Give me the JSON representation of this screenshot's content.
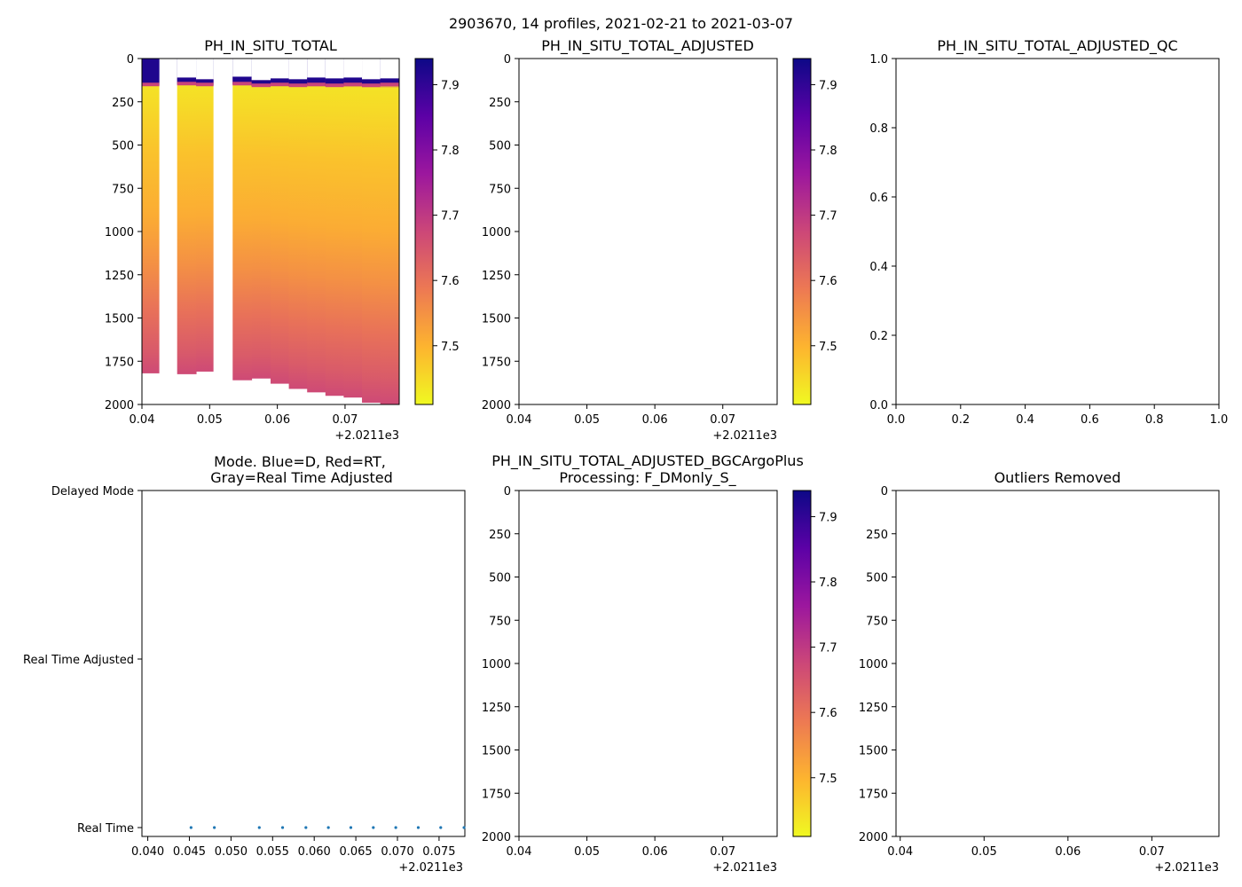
{
  "figure": {
    "suptitle": "2903670, 14 profiles, 2021-02-21 to 2021-03-07",
    "x_offset_label": "+2.0211e3"
  },
  "colorbar": {
    "ticks": [
      "7.9",
      "7.8",
      "7.7",
      "7.6",
      "7.5"
    ],
    "tick_values": [
      7.9,
      7.8,
      7.7,
      7.6,
      7.5
    ],
    "range": [
      7.41,
      7.94
    ],
    "colormap": "plasma_r",
    "stops": [
      "#f0f921",
      "#fdb42f",
      "#ed7953",
      "#cc4778",
      "#9c179e",
      "#5c01a6",
      "#0d0887"
    ]
  },
  "depth_ticks": [
    "0",
    "250",
    "500",
    "750",
    "1000",
    "1250",
    "1500",
    "1750",
    "2000"
  ],
  "chart_data": [
    {
      "type": "heatmap",
      "title": "PH_IN_SITU_TOTAL",
      "xlabel": "",
      "ylabel": "",
      "x_offset": 2021.1,
      "xlim": [
        0.04,
        0.078
      ],
      "ylim": [
        2000,
        0
      ],
      "xticks": [
        "0.04",
        "0.05",
        "0.06",
        "0.07"
      ],
      "xtick_values": [
        0.04,
        0.05,
        0.06,
        0.07
      ],
      "profiles": [
        {
          "x0": 0.04,
          "x1": 0.0425,
          "top": 0,
          "surface_end": 155,
          "bottom": 1820
        },
        {
          "x0": 0.0452,
          "x1": 0.048,
          "top": 110,
          "surface_end": 150,
          "bottom": 1825
        },
        {
          "x0": 0.048,
          "x1": 0.0505,
          "top": 120,
          "surface_end": 155,
          "bottom": 1810
        },
        {
          "x0": 0.0534,
          "x1": 0.0562,
          "top": 105,
          "surface_end": 150,
          "bottom": 1860
        },
        {
          "x0": 0.0562,
          "x1": 0.059,
          "top": 125,
          "surface_end": 160,
          "bottom": 1850
        },
        {
          "x0": 0.059,
          "x1": 0.0617,
          "top": 115,
          "surface_end": 155,
          "bottom": 1880
        },
        {
          "x0": 0.0617,
          "x1": 0.0644,
          "top": 120,
          "surface_end": 160,
          "bottom": 1910
        },
        {
          "x0": 0.0644,
          "x1": 0.0671,
          "top": 110,
          "surface_end": 155,
          "bottom": 1930
        },
        {
          "x0": 0.0671,
          "x1": 0.0698,
          "top": 115,
          "surface_end": 160,
          "bottom": 1950
        },
        {
          "x0": 0.0698,
          "x1": 0.0725,
          "top": 110,
          "surface_end": 155,
          "bottom": 1960
        },
        {
          "x0": 0.0725,
          "x1": 0.0752,
          "top": 120,
          "surface_end": 160,
          "bottom": 1990
        },
        {
          "x0": 0.0752,
          "x1": 0.078,
          "top": 115,
          "surface_end": 155,
          "bottom": 2000
        }
      ],
      "depth_ph_profile": [
        {
          "depth": 0,
          "ph": 7.93
        },
        {
          "depth": 100,
          "ph": 7.92
        },
        {
          "depth": 150,
          "ph": 7.7
        },
        {
          "depth": 170,
          "ph": 7.44
        },
        {
          "depth": 300,
          "ph": 7.45
        },
        {
          "depth": 600,
          "ph": 7.48
        },
        {
          "depth": 1000,
          "ph": 7.51
        },
        {
          "depth": 1300,
          "ph": 7.55
        },
        {
          "depth": 1600,
          "ph": 7.6
        },
        {
          "depth": 1850,
          "ph": 7.64
        },
        {
          "depth": 2000,
          "ph": 7.67
        }
      ]
    },
    {
      "type": "heatmap",
      "title": "PH_IN_SITU_TOTAL_ADJUSTED",
      "xlim": [
        0.04,
        0.078
      ],
      "ylim": [
        2000,
        0
      ],
      "xticks": [
        "0.04",
        "0.05",
        "0.06",
        "0.07"
      ],
      "xtick_values": [
        0.04,
        0.05,
        0.06,
        0.07
      ],
      "values": []
    },
    {
      "type": "scatter",
      "title": "PH_IN_SITU_TOTAL_ADJUSTED_QC",
      "xlim": [
        0,
        1
      ],
      "ylim": [
        0,
        1
      ],
      "xticks": [
        "0.0",
        "0.2",
        "0.4",
        "0.6",
        "0.8",
        "1.0"
      ],
      "xtick_values": [
        0,
        0.2,
        0.4,
        0.6,
        0.8,
        1.0
      ],
      "yticks": [
        "0.0",
        "0.2",
        "0.4",
        "0.6",
        "0.8",
        "1.0"
      ],
      "ytick_values": [
        0,
        0.2,
        0.4,
        0.6,
        0.8,
        1.0
      ],
      "values": []
    },
    {
      "type": "scatter",
      "title_lines": [
        "Mode. Blue=D, Red=RT,",
        "Gray=Real Time Adjusted"
      ],
      "xlim": [
        0.0393,
        0.0781
      ],
      "xticks": [
        "0.040",
        "0.045",
        "0.050",
        "0.055",
        "0.060",
        "0.065",
        "0.070",
        "0.075"
      ],
      "xtick_values": [
        0.04,
        0.045,
        0.05,
        0.055,
        0.06,
        0.065,
        0.07,
        0.075
      ],
      "yticks": [
        "Delayed Mode",
        "Real Time Adjusted",
        "Real Time"
      ],
      "ytick_values": [
        2,
        1,
        0
      ],
      "series": [
        {
          "name": "Real Time",
          "color": "#1f77b4",
          "x": [
            0.0452,
            0.048,
            0.0534,
            0.0562,
            0.059,
            0.0617,
            0.0644,
            0.0671,
            0.0698,
            0.0725,
            0.0752,
            0.078
          ],
          "y": [
            0,
            0,
            0,
            0,
            0,
            0,
            0,
            0,
            0,
            0,
            0,
            0
          ]
        }
      ]
    },
    {
      "type": "heatmap",
      "title_lines": [
        "PH_IN_SITU_TOTAL_ADJUSTED_BGCArgoPlus",
        "Processing: F_DMonly_S_"
      ],
      "xlim": [
        0.04,
        0.078
      ],
      "ylim": [
        2000,
        0
      ],
      "xticks": [
        "0.04",
        "0.05",
        "0.06",
        "0.07"
      ],
      "xtick_values": [
        0.04,
        0.05,
        0.06,
        0.07
      ],
      "values": []
    },
    {
      "type": "scatter",
      "title": "Outliers Removed",
      "xlim": [
        0.0395,
        0.078
      ],
      "ylim": [
        2000,
        0
      ],
      "xticks": [
        "0.04",
        "0.05",
        "0.06",
        "0.07"
      ],
      "xtick_values": [
        0.04,
        0.05,
        0.06,
        0.07
      ],
      "values": []
    }
  ]
}
